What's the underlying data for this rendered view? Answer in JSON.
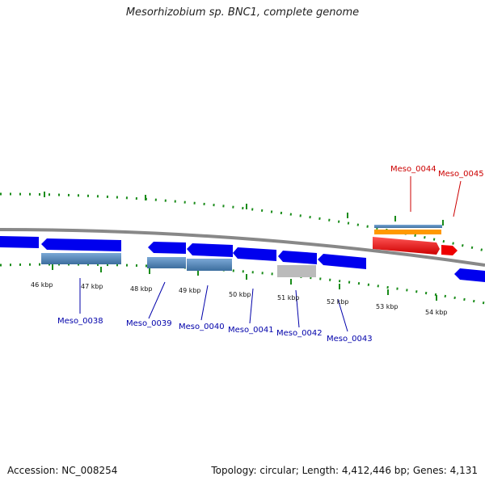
{
  "title": "Mesorhizobium sp. BNC1, complete genome",
  "footer": {
    "accession": "Accession: NC_008254",
    "summary": "Topology: circular; Length: 4,412,446 bp; Genes: 4,131"
  },
  "colors": {
    "backbone": "#888888",
    "tick": "#1a8c1a",
    "forward_gene": "#0000ee",
    "reverse_gene": "#0000ee",
    "highlight_gene": "#ee0000",
    "cds_blue": "#4a7fb5",
    "cds_gray": "#bbbbbb",
    "cds_orange": "#ff9900",
    "label_blue": "#0000aa",
    "label_red": "#cc0000"
  },
  "scale_labels": [
    "46 kbp",
    "47 kbp",
    "48 kbp",
    "49 kbp",
    "50 kbp",
    "51 kbp",
    "52 kbp",
    "53 kbp",
    "54 kbp"
  ],
  "gene_labels": [
    {
      "text": "Meso_0038",
      "color": "blue"
    },
    {
      "text": "Meso_0039",
      "color": "blue"
    },
    {
      "text": "Meso_0040",
      "color": "blue"
    },
    {
      "text": "Meso_0041",
      "color": "blue"
    },
    {
      "text": "Meso_0042",
      "color": "blue"
    },
    {
      "text": "Meso_0043",
      "color": "blue"
    },
    {
      "text": "Meso_0044",
      "color": "red"
    },
    {
      "text": "Meso_0045",
      "color": "red"
    }
  ]
}
